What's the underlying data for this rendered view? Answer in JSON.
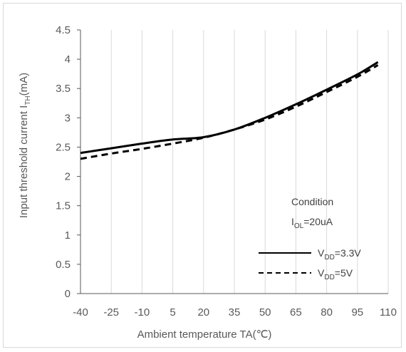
{
  "chart_data": {
    "type": "line",
    "xlabel": "Ambient temperature TA(℃)",
    "ylabel": {
      "main": "Input threshold current I",
      "sub": "TH",
      "tail": "(mA)"
    },
    "x_ticks": [
      "-40",
      "-25",
      "-10",
      "5",
      "20",
      "35",
      "50",
      "65",
      "80",
      "95",
      "110"
    ],
    "y_ticks": [
      "0",
      "0.5",
      "1",
      "1.5",
      "2",
      "2.5",
      "3",
      "3.5",
      "4",
      "4.5"
    ],
    "xlim": [
      -40,
      110
    ],
    "ylim": [
      0,
      4.5
    ],
    "grid": "vertical",
    "legend_placement": "bottom-right",
    "condition": {
      "title": "Condition",
      "param_main": "I",
      "param_sub": "OL",
      "param_value": "=20uA"
    },
    "series": [
      {
        "name_main": "V",
        "name_sub": "DD",
        "name_value": "=3.3V",
        "style": "solid",
        "color": "#000000",
        "x": [
          -40,
          -25,
          -10,
          5,
          20,
          35,
          50,
          65,
          80,
          95,
          105
        ],
        "y": [
          2.4,
          2.48,
          2.56,
          2.63,
          2.67,
          2.8,
          3.0,
          3.23,
          3.48,
          3.74,
          3.95
        ]
      },
      {
        "name_main": "V",
        "name_sub": "DD",
        "name_value": "=5V",
        "style": "dashed",
        "color": "#000000",
        "x": [
          -40,
          -25,
          -10,
          5,
          20,
          35,
          50,
          65,
          80,
          95,
          105
        ],
        "y": [
          2.3,
          2.39,
          2.47,
          2.56,
          2.66,
          2.8,
          2.97,
          3.19,
          3.44,
          3.7,
          3.9
        ]
      }
    ]
  }
}
